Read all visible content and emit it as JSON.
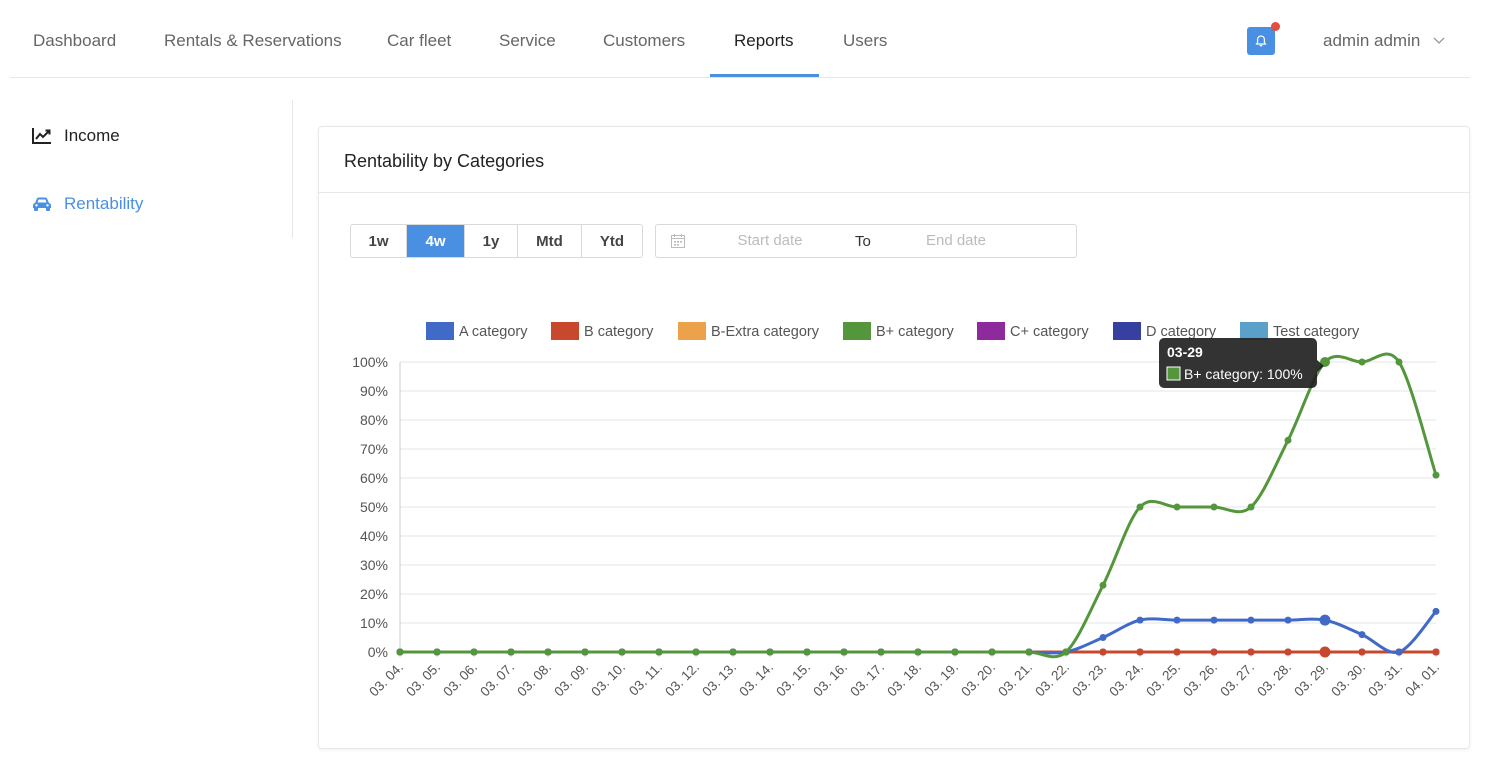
{
  "nav": {
    "items": [
      {
        "label": "Dashboard",
        "active": false
      },
      {
        "label": "Rentals & Reservations",
        "active": false
      },
      {
        "label": "Car fleet",
        "active": false
      },
      {
        "label": "Service",
        "active": false
      },
      {
        "label": "Customers",
        "active": false
      },
      {
        "label": "Reports",
        "active": true
      },
      {
        "label": "Users",
        "active": false
      }
    ],
    "user": "admin admin",
    "accent": "#4a90e2"
  },
  "sidebar": {
    "items": [
      {
        "label": "Income",
        "icon": "line-chart-icon",
        "active": false
      },
      {
        "label": "Rentability",
        "icon": "car-icon",
        "active": true
      }
    ]
  },
  "card": {
    "title": "Rentability by Categories",
    "periods": [
      {
        "label": "1w",
        "active": false
      },
      {
        "label": "4w",
        "active": true
      },
      {
        "label": "1y",
        "active": false
      },
      {
        "label": "Mtd",
        "active": false
      },
      {
        "label": "Ytd",
        "active": false
      }
    ],
    "date_range": {
      "start_placeholder": "Start date",
      "to_label": "To",
      "end_placeholder": "End date"
    }
  },
  "chart_data": {
    "type": "line",
    "title": "",
    "xlabel": "",
    "ylabel": "",
    "ylim": [
      0,
      100
    ],
    "y_ticks": [
      "0%",
      "10%",
      "20%",
      "30%",
      "40%",
      "50%",
      "60%",
      "70%",
      "80%",
      "90%",
      "100%"
    ],
    "grid": true,
    "legend_position": "top",
    "categories": [
      "03. 04.",
      "03. 05.",
      "03. 06.",
      "03. 07.",
      "03. 08.",
      "03. 09.",
      "03. 10.",
      "03. 11.",
      "03. 12.",
      "03. 13.",
      "03. 14.",
      "03. 15.",
      "03. 16.",
      "03. 17.",
      "03. 18.",
      "03. 19.",
      "03. 20.",
      "03. 21.",
      "03. 22.",
      "03. 23.",
      "03. 24.",
      "03. 25.",
      "03. 26.",
      "03. 27.",
      "03. 28.",
      "03. 29.",
      "03. 30.",
      "03. 31.",
      "04. 01."
    ],
    "series": [
      {
        "name": "A category",
        "color": "#4169c8",
        "values": [
          0,
          0,
          0,
          0,
          0,
          0,
          0,
          0,
          0,
          0,
          0,
          0,
          0,
          0,
          0,
          0,
          0,
          0,
          0,
          5,
          11,
          11,
          11,
          11,
          11,
          11,
          6,
          0,
          14
        ]
      },
      {
        "name": "B category",
        "color": "#c8482e",
        "values": [
          0,
          0,
          0,
          0,
          0,
          0,
          0,
          0,
          0,
          0,
          0,
          0,
          0,
          0,
          0,
          0,
          0,
          0,
          0,
          0,
          0,
          0,
          0,
          0,
          0,
          0,
          0,
          0,
          0
        ]
      },
      {
        "name": "B-Extra category",
        "color": "#eba24a",
        "values": [
          0,
          0,
          0,
          0,
          0,
          0,
          0,
          0,
          0,
          0,
          0,
          0,
          0,
          0,
          0,
          0,
          0,
          0,
          0,
          0,
          0,
          0,
          0,
          0,
          0,
          0,
          0,
          0,
          0
        ]
      },
      {
        "name": "B+ category",
        "color": "#54963c",
        "values": [
          0,
          0,
          0,
          0,
          0,
          0,
          0,
          0,
          0,
          0,
          0,
          0,
          0,
          0,
          0,
          0,
          0,
          0,
          0,
          23,
          50,
          50,
          50,
          50,
          73,
          100,
          100,
          100,
          61
        ]
      },
      {
        "name": "C+ category",
        "color": "#8e2a9c",
        "values": [
          0,
          0,
          0,
          0,
          0,
          0,
          0,
          0,
          0,
          0,
          0,
          0,
          0,
          0,
          0,
          0,
          0,
          0,
          0,
          0,
          0,
          0,
          0,
          0,
          0,
          0,
          0,
          0,
          0
        ]
      },
      {
        "name": "D category",
        "color": "#3540a0",
        "values": [
          0,
          0,
          0,
          0,
          0,
          0,
          0,
          0,
          0,
          0,
          0,
          0,
          0,
          0,
          0,
          0,
          0,
          0,
          0,
          0,
          0,
          0,
          0,
          0,
          0,
          0,
          0,
          0,
          0
        ]
      },
      {
        "name": "Test category",
        "color": "#5ba0c8",
        "values": [
          0,
          0,
          0,
          0,
          0,
          0,
          0,
          0,
          0,
          0,
          0,
          0,
          0,
          0,
          0,
          0,
          0,
          0,
          0,
          0,
          0,
          0,
          0,
          0,
          0,
          0,
          0,
          0,
          0
        ]
      }
    ],
    "tooltip": {
      "title": "03-29",
      "text": "B+ category: 100%",
      "series": "B+ category",
      "index": 25
    }
  }
}
